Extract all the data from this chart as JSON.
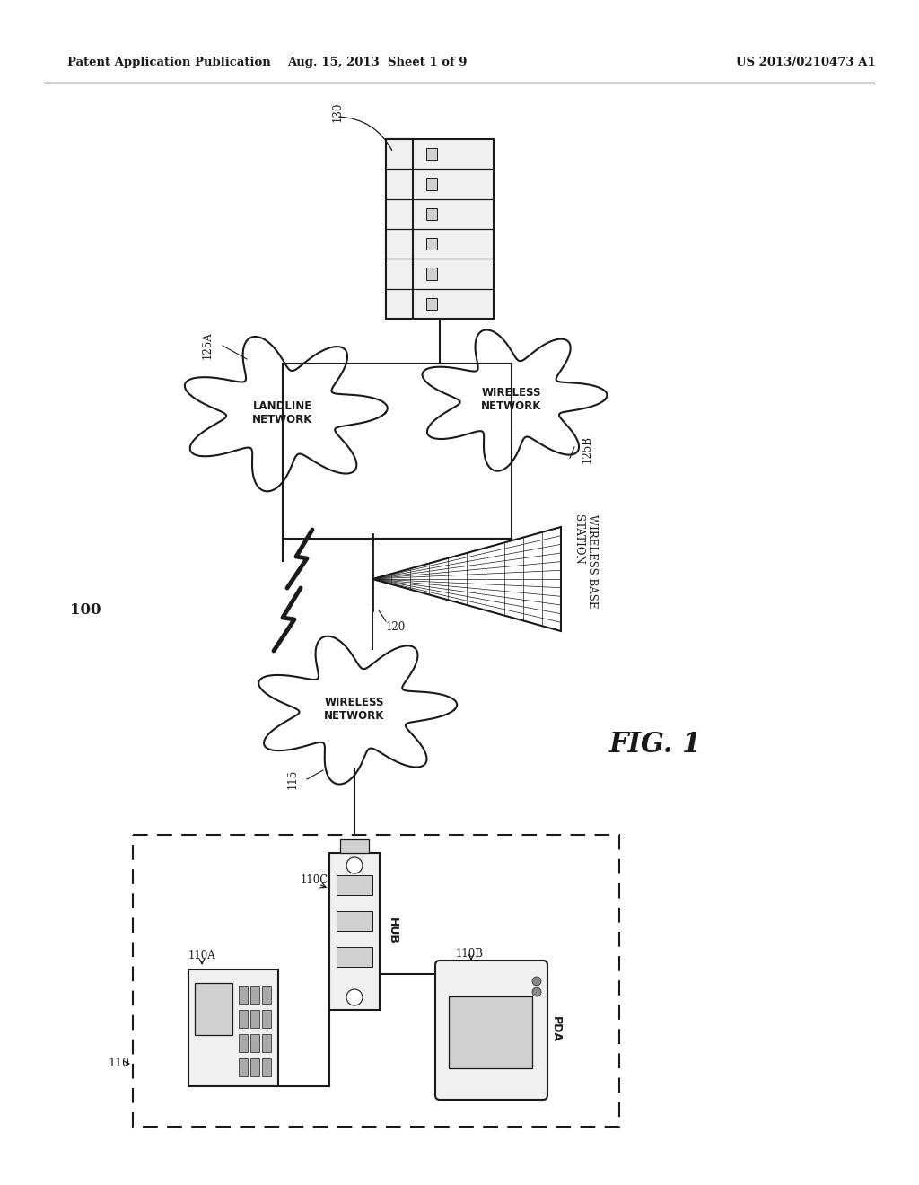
{
  "bg_color": "#ffffff",
  "black": "#1a1a1a",
  "gray_light": "#f0f0f0",
  "gray_med": "#d0d0d0",
  "white": "#ffffff",
  "header_left": "Patent Application Publication",
  "header_center": "Aug. 15, 2013  Sheet 1 of 9",
  "header_right": "US 2013/0210473 A1",
  "fig_label": "FIG. 1",
  "label_100": "100",
  "label_110": "110",
  "label_110A": "110A",
  "label_110B": "110B",
  "label_110C": "110C",
  "label_115": "115",
  "label_120": "120",
  "label_125A": "125A",
  "label_125B": "125B",
  "label_130": "130",
  "text_hub": "HUB",
  "text_pda": "PDA",
  "text_landline": "LANDLINE\nNETWORK",
  "text_wireless_125B": "WIRELESS\nNETWORK",
  "text_wireless_115": "WIRELESS\nNETWORK",
  "text_wbs": "WIRELESS BASE\nSTATION"
}
